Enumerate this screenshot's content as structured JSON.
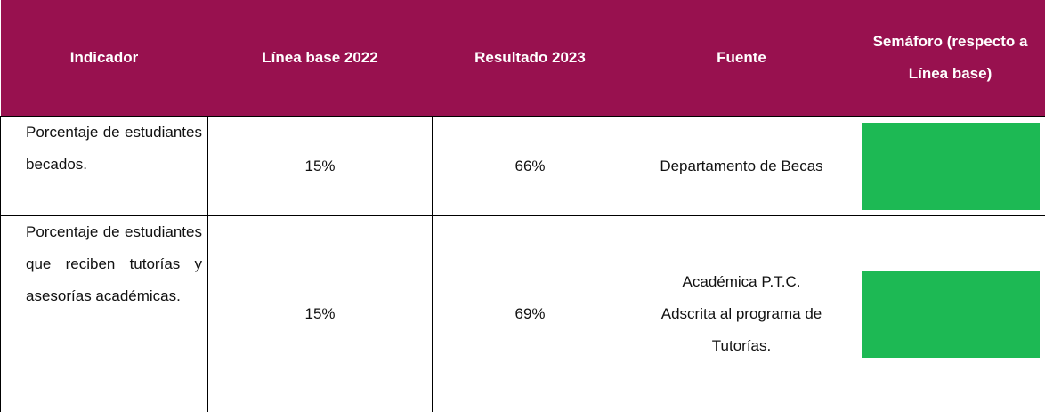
{
  "table": {
    "header": [
      "Indicador",
      "Línea base 2022",
      "Resultado 2023",
      "Fuente",
      "Semáforo (respecto a Línea base)"
    ],
    "rows": [
      {
        "indicador": "Porcentaje de estudiantes becados.",
        "base": "15%",
        "resultado": "66%",
        "fuente": "Departamento de Becas",
        "semaforo": "#1db954"
      },
      {
        "indicador": "Porcentaje de estudiantes que reciben tutorías y asesorías académicas.",
        "base": "15%",
        "resultado": "69%",
        "fuente": "Académica P.T.C. Adscrita al programa de Tutorías.",
        "semaforo": "#1db954"
      }
    ]
  }
}
